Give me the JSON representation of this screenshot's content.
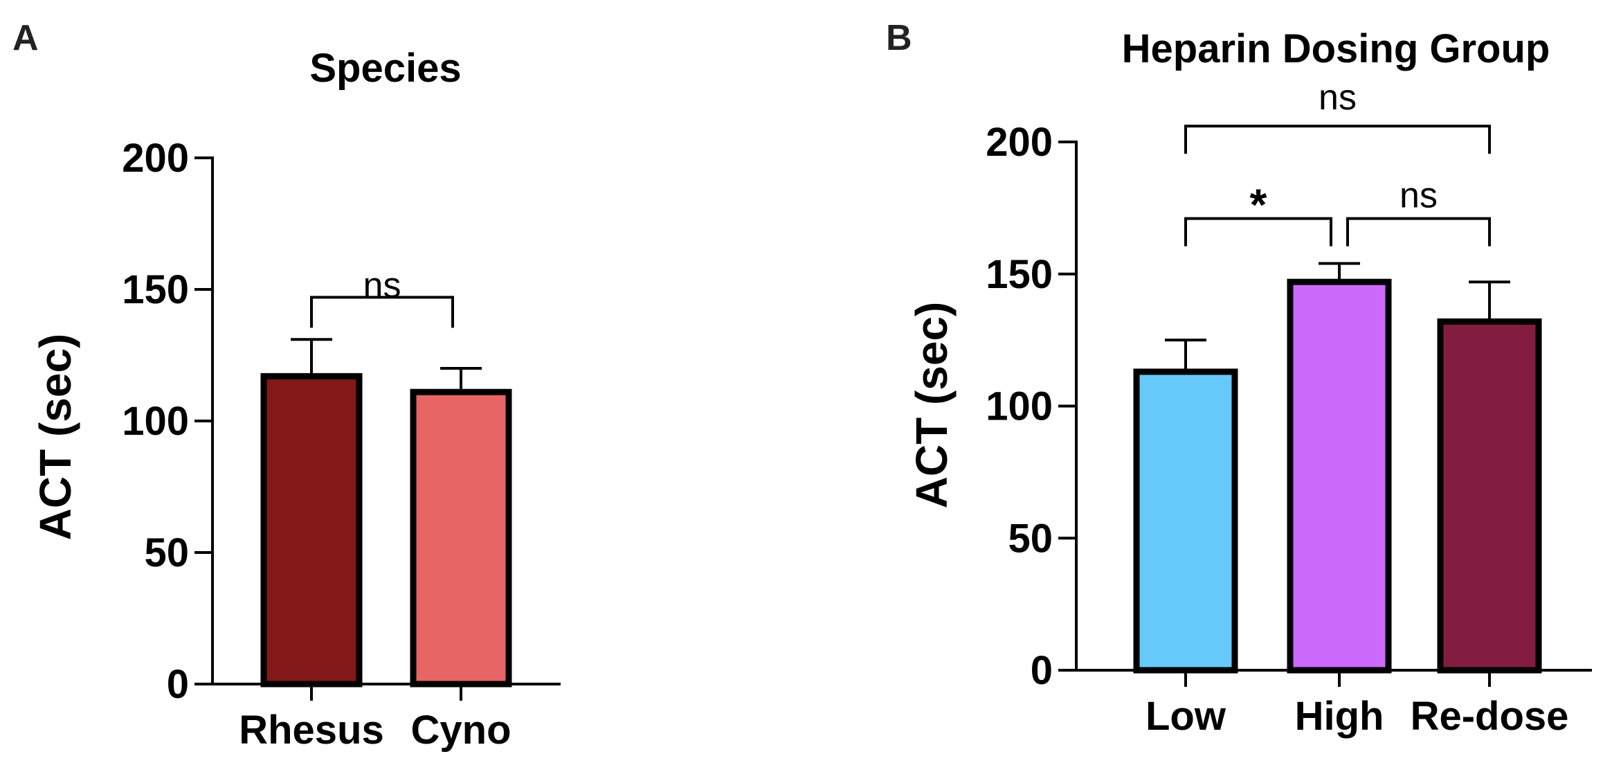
{
  "chart_data": [
    {
      "panel": "A",
      "type": "bar",
      "title": "Species",
      "xlabel": "",
      "ylabel": "ACT (sec)",
      "ylim": [
        0,
        200
      ],
      "yticks": [
        0,
        50,
        100,
        150,
        200
      ],
      "ytick_labels": [
        "0",
        "50",
        "100",
        "150",
        "200"
      ],
      "grid": false,
      "legend": "none",
      "categories": [
        "Rhesus",
        "Cyno"
      ],
      "values": [
        117,
        111
      ],
      "errors": [
        14,
        9
      ],
      "colors": [
        "#821818",
        "#e86565"
      ],
      "comparisons": [
        {
          "from": 0,
          "to": 1,
          "label": "ns",
          "bracket_y": 147
        }
      ]
    },
    {
      "panel": "B",
      "type": "bar",
      "title": "Heparin Dosing Group",
      "xlabel": "",
      "ylabel": "ACT (sec)",
      "ylim": [
        0,
        200
      ],
      "yticks": [
        0,
        50,
        100,
        150,
        200
      ],
      "ytick_labels": [
        "0",
        "50",
        "100",
        "150",
        "200"
      ],
      "grid": false,
      "legend": "none",
      "categories": [
        "Low",
        "High",
        "Re-dose"
      ],
      "values": [
        113,
        147,
        132
      ],
      "errors": [
        12,
        7,
        15
      ],
      "colors": [
        "#66c9fa",
        "#cd6afe",
        "#831c41"
      ],
      "comparisons": [
        {
          "from": 0,
          "to": 2,
          "label": "ns",
          "bracket_y": 206
        },
        {
          "from": 0,
          "to": 1,
          "label": "*",
          "bracket_y": 171
        },
        {
          "from": 1,
          "to": 2,
          "label": "ns",
          "bracket_y": 171
        }
      ]
    }
  ]
}
